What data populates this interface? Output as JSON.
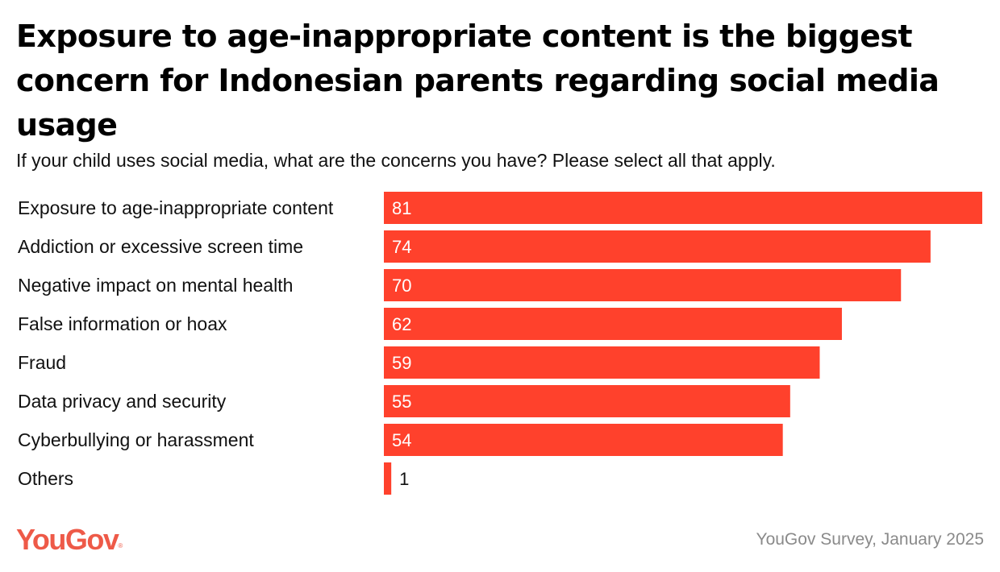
{
  "title": "Exposure to age-inappropriate content is the biggest concern for Indonesian parents regarding social media usage",
  "subtitle": "If your child uses social media, what are the concerns you have? Please select all that apply.",
  "source": "YouGov Survey, January 2025",
  "brand": {
    "name": "YouGov",
    "color": "#ee5a48"
  },
  "colors": {
    "bar": "#ff412c",
    "value_label_inside": "#ffffff",
    "value_label_outside": "#111111"
  },
  "chart_data": {
    "type": "bar",
    "orientation": "horizontal",
    "categories": [
      "Exposure to age-inappropriate content",
      "Addiction or excessive screen time",
      "Negative impact on mental health",
      "False information or hoax",
      "Fraud",
      "Data privacy and security",
      "Cyberbullying or harassment",
      "Others"
    ],
    "values": [
      81,
      74,
      70,
      62,
      59,
      55,
      54,
      1
    ],
    "xlim": [
      0,
      81
    ],
    "grid": false,
    "legend": "none",
    "data_labels": true
  }
}
